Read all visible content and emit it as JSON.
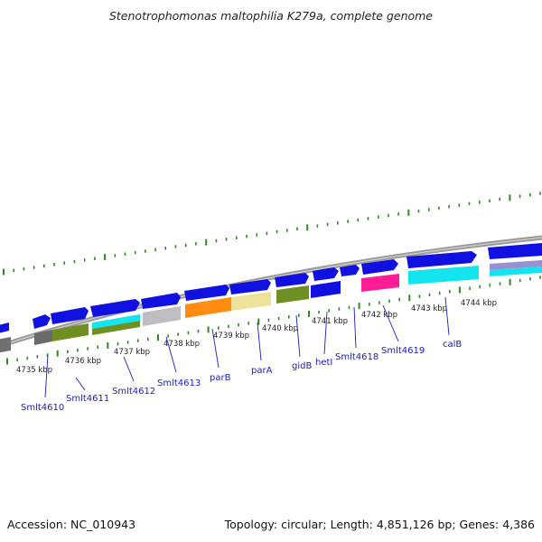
{
  "header": {
    "title": "Stenotrophomonas maltophilia K279a, complete genome"
  },
  "footer": {
    "accession": "Accession: NC_010943",
    "summary": "Topology: circular; Length: 4,851,126 bp; Genes: 4,386"
  },
  "colors": {
    "forward": "#1010e0",
    "reverse_gray": "#707070",
    "olive": "#6f8f23",
    "cyan": "#14e4ee",
    "silver": "#bdbdc2",
    "orange": "#ff8c10",
    "khaki": "#ece29a",
    "magenta": "#ff1c96",
    "tick": "#2c8a1e",
    "backbone": "#9a9a9a"
  },
  "map": {
    "kbp_labels": [
      "4735 kbp",
      "4736 kbp",
      "4737 kbp",
      "4738 kbp",
      "4739 kbp",
      "4740 kbp",
      "4741 kbp",
      "4742 kbp",
      "4743 kbp",
      "4744 kbp"
    ],
    "gene_labels": [
      "Smlt4610",
      "Smlt4611",
      "Smlt4612",
      "Smlt4613",
      "parB",
      "parA",
      "gidB",
      "hetI",
      "Smlt4618",
      "Smlt4619",
      "calB"
    ]
  }
}
